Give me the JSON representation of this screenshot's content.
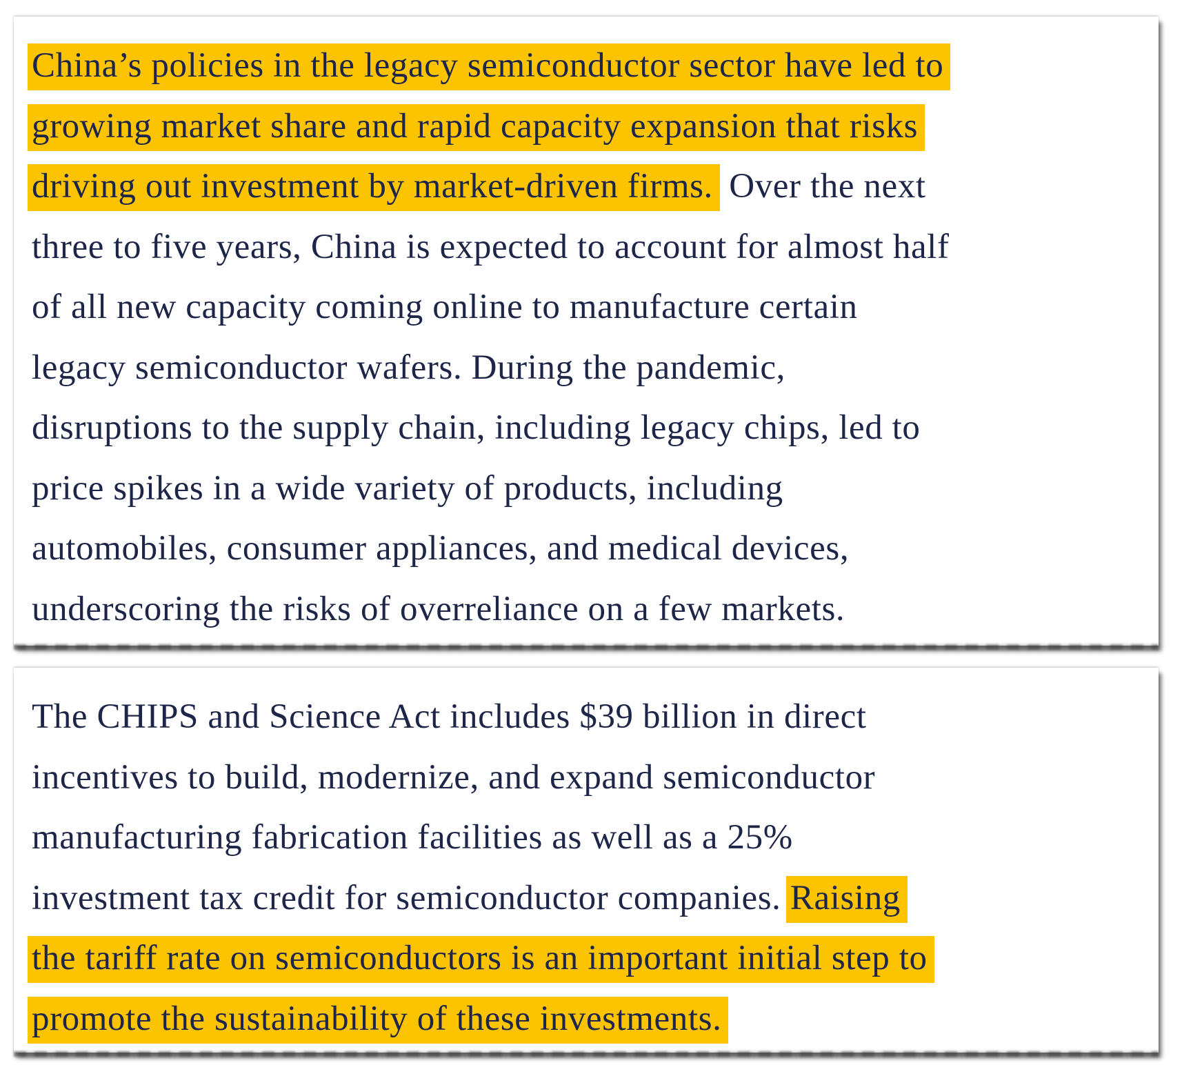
{
  "colors": {
    "text": "#1d2548",
    "highlight": "#fcc300"
  },
  "excerpts": [
    {
      "lines": [
        [
          {
            "text": "China’s policies in the legacy semiconductor sector have led to",
            "highlight": true
          }
        ],
        [
          {
            "text": "growing market share and rapid capacity expansion that risks",
            "highlight": true
          }
        ],
        [
          {
            "text": "driving out investment by market-driven firms.",
            "highlight": true
          },
          {
            "text": " Over the next",
            "highlight": false
          }
        ],
        [
          {
            "text": "three to five years, China is expected to account for almost half",
            "highlight": false
          }
        ],
        [
          {
            "text": "of all new capacity coming online to manufacture certain",
            "highlight": false
          }
        ],
        [
          {
            "text": "legacy semiconductor wafers. During the pandemic,",
            "highlight": false
          }
        ],
        [
          {
            "text": "disruptions to the supply chain, including legacy chips, led to",
            "highlight": false
          }
        ],
        [
          {
            "text": "price spikes in a wide variety of products, including",
            "highlight": false
          }
        ],
        [
          {
            "text": "automobiles, consumer appliances, and medical devices,",
            "highlight": false
          }
        ],
        [
          {
            "text": "underscoring the risks of overreliance on a few markets.",
            "highlight": false
          }
        ]
      ]
    },
    {
      "lines": [
        [
          {
            "text": "The CHIPS and Science Act includes $39 billion in direct",
            "highlight": false
          }
        ],
        [
          {
            "text": "incentives to build, modernize, and expand semiconductor",
            "highlight": false
          }
        ],
        [
          {
            "text": "manufacturing fabrication facilities as well as a 25%",
            "highlight": false
          }
        ],
        [
          {
            "text": "investment tax credit for semiconductor companies. ",
            "highlight": false
          },
          {
            "text": "Raising",
            "highlight": true
          }
        ],
        [
          {
            "text": "the tariff rate on semiconductors is an important initial step to",
            "highlight": true
          }
        ],
        [
          {
            "text": "promote the sustainability of these investments.",
            "highlight": true
          }
        ]
      ]
    }
  ]
}
